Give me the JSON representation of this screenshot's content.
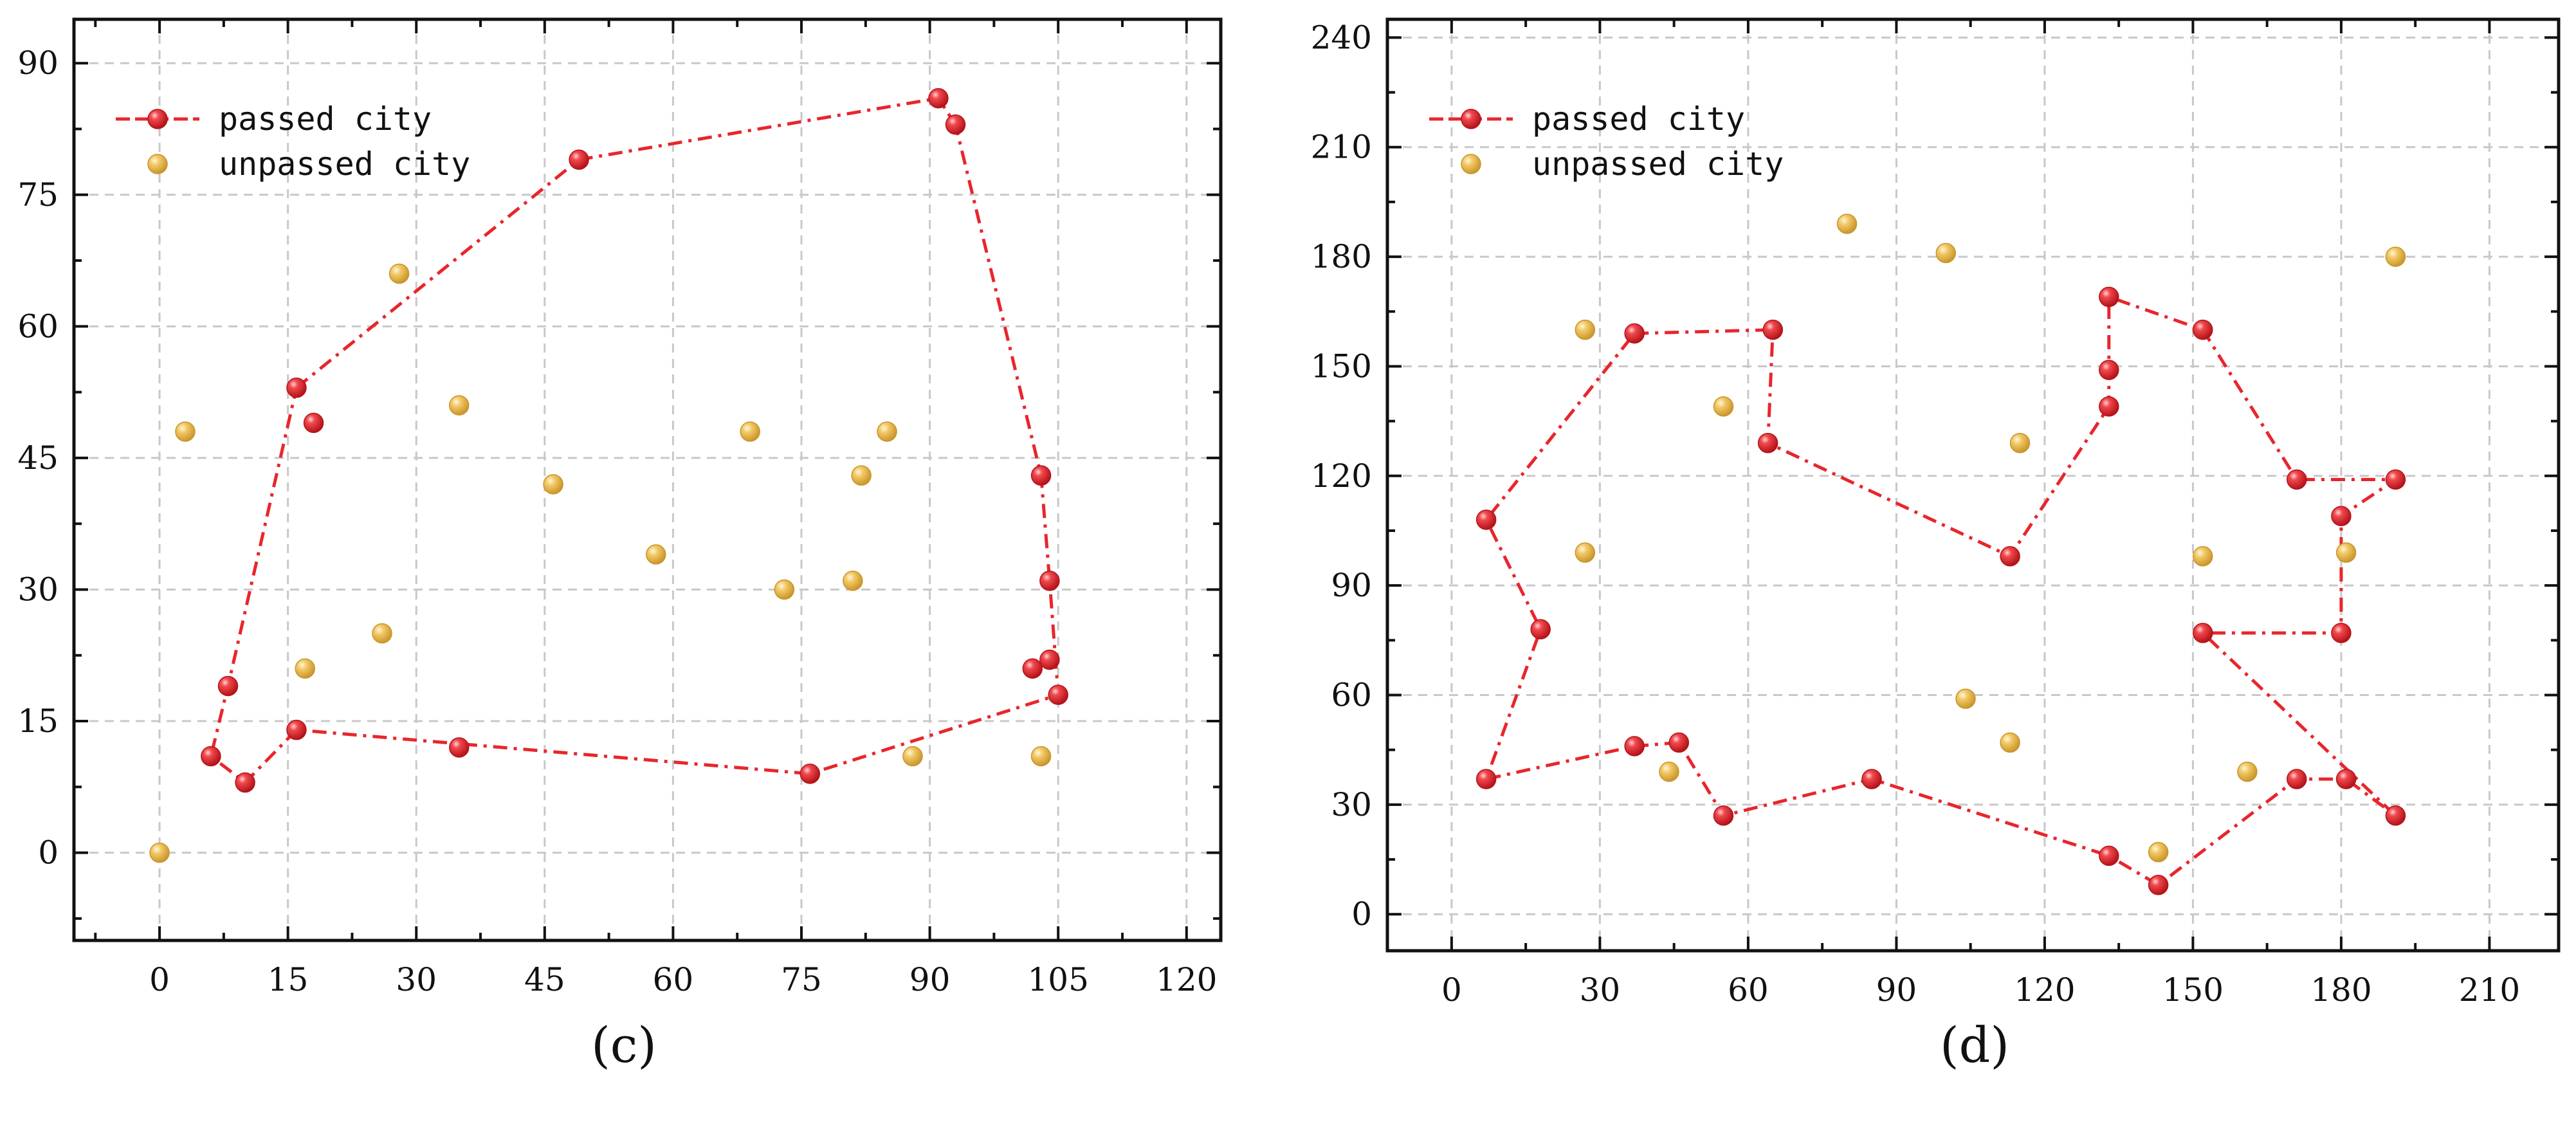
{
  "colors": {
    "passed": "#e8262c",
    "passed_dark": "#b5141a",
    "passed_light": "#ff9a9c",
    "unpassed": "#f0c565",
    "unpassed_dark": "#c9962c",
    "unpassed_light": "#fff0c4",
    "grid": "#c8c8c8",
    "axis": "#111111"
  },
  "chart_data": [
    {
      "type": "scatter",
      "panel_label": "(c)",
      "xlim": [
        -10,
        124
      ],
      "ylim": [
        -10,
        95
      ],
      "xticks": [
        0,
        15,
        30,
        45,
        60,
        75,
        90,
        105,
        120
      ],
      "yticks": [
        0,
        15,
        30,
        45,
        60,
        75,
        90
      ],
      "grid": true,
      "legend": {
        "placement": "top-left",
        "entries": [
          "passed city",
          "unpassed city"
        ]
      },
      "series": [
        {
          "name": "passed city",
          "style": "dash-dot line with markers",
          "x": [
            16,
            49,
            91,
            93,
            103,
            104,
            104,
            105,
            76,
            16,
            10,
            6,
            8,
            16,
            18,
            35,
            102
          ],
          "y": [
            53,
            79,
            86,
            83,
            43,
            31,
            22,
            18,
            9,
            14,
            8,
            11,
            19,
            53,
            49,
            12,
            21
          ],
          "path": [
            [
              16,
              53
            ],
            [
              49,
              79
            ],
            [
              91,
              86
            ],
            [
              93,
              83
            ],
            [
              103,
              43
            ],
            [
              104,
              31
            ],
            [
              105,
              18
            ],
            [
              76,
              9
            ],
            [
              16,
              14
            ],
            [
              10,
              8
            ],
            [
              6,
              11
            ],
            [
              8,
              19
            ],
            [
              16,
              53
            ]
          ],
          "points": [
            [
              16,
              53
            ],
            [
              18,
              49
            ],
            [
              49,
              79
            ],
            [
              91,
              86
            ],
            [
              93,
              83
            ],
            [
              103,
              43
            ],
            [
              104,
              31
            ],
            [
              104,
              22
            ],
            [
              102,
              21
            ],
            [
              105,
              18
            ],
            [
              76,
              9
            ],
            [
              35,
              12
            ],
            [
              16,
              14
            ],
            [
              10,
              8
            ],
            [
              6,
              11
            ],
            [
              8,
              19
            ]
          ]
        },
        {
          "name": "unpassed city",
          "points": [
            [
              3,
              48
            ],
            [
              28,
              66
            ],
            [
              35,
              51
            ],
            [
              46,
              42
            ],
            [
              58,
              34
            ],
            [
              69,
              48
            ],
            [
              73,
              30
            ],
            [
              81,
              31
            ],
            [
              82,
              43
            ],
            [
              85,
              48
            ],
            [
              26,
              25
            ],
            [
              17,
              21
            ],
            [
              88,
              11
            ],
            [
              103,
              11
            ],
            [
              0,
              0
            ]
          ]
        }
      ]
    },
    {
      "type": "scatter",
      "panel_label": "(d)",
      "xlim": [
        -13,
        224
      ],
      "ylim": [
        -10,
        245
      ],
      "xticks": [
        0,
        30,
        60,
        90,
        120,
        150,
        180,
        210
      ],
      "yticks": [
        0,
        30,
        60,
        90,
        120,
        150,
        180,
        210,
        240
      ],
      "grid": true,
      "legend": {
        "placement": "top-left",
        "entries": [
          "passed city",
          "unpassed city"
        ]
      },
      "series": [
        {
          "name": "passed city",
          "style": "dash-dot line with markers",
          "path": [
            [
              37,
              159
            ],
            [
              65,
              160
            ],
            [
              64,
              129
            ],
            [
              113,
              98
            ],
            [
              133,
              139
            ],
            [
              133,
              149
            ],
            [
              133,
              169
            ],
            [
              152,
              160
            ],
            [
              171,
              119
            ],
            [
              191,
              119
            ],
            [
              180,
              109
            ],
            [
              180,
              77
            ],
            [
              152,
              77
            ],
            [
              191,
              27
            ],
            [
              181,
              37
            ],
            [
              171,
              37
            ],
            [
              143,
              8
            ],
            [
              133,
              16
            ],
            [
              85,
              37
            ],
            [
              55,
              27
            ],
            [
              46,
              47
            ],
            [
              37,
              46
            ],
            [
              7,
              37
            ],
            [
              18,
              78
            ],
            [
              7,
              108
            ],
            [
              37,
              159
            ]
          ],
          "points": [
            [
              37,
              159
            ],
            [
              65,
              160
            ],
            [
              64,
              129
            ],
            [
              113,
              98
            ],
            [
              133,
              139
            ],
            [
              133,
              149
            ],
            [
              133,
              169
            ],
            [
              152,
              160
            ],
            [
              171,
              119
            ],
            [
              191,
              119
            ],
            [
              180,
              109
            ],
            [
              180,
              77
            ],
            [
              152,
              77
            ],
            [
              191,
              27
            ],
            [
              181,
              37
            ],
            [
              171,
              37
            ],
            [
              143,
              8
            ],
            [
              133,
              16
            ],
            [
              85,
              37
            ],
            [
              55,
              27
            ],
            [
              46,
              47
            ],
            [
              37,
              46
            ],
            [
              7,
              37
            ],
            [
              18,
              78
            ],
            [
              7,
              108
            ]
          ]
        },
        {
          "name": "unpassed city",
          "points": [
            [
              27,
              160
            ],
            [
              80,
              189
            ],
            [
              100,
              181
            ],
            [
              55,
              139
            ],
            [
              115,
              129
            ],
            [
              191,
              180
            ],
            [
              27,
              99
            ],
            [
              152,
              98
            ],
            [
              181,
              99
            ],
            [
              104,
              59
            ],
            [
              113,
              47
            ],
            [
              44,
              39
            ],
            [
              161,
              39
            ],
            [
              143,
              17
            ]
          ]
        }
      ]
    }
  ]
}
